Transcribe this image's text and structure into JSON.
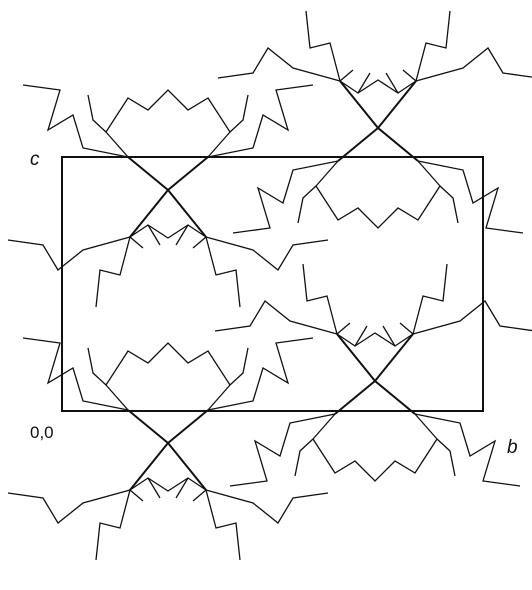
{
  "labels": {
    "c": "c",
    "origin": "0,0",
    "b": "b"
  }
}
